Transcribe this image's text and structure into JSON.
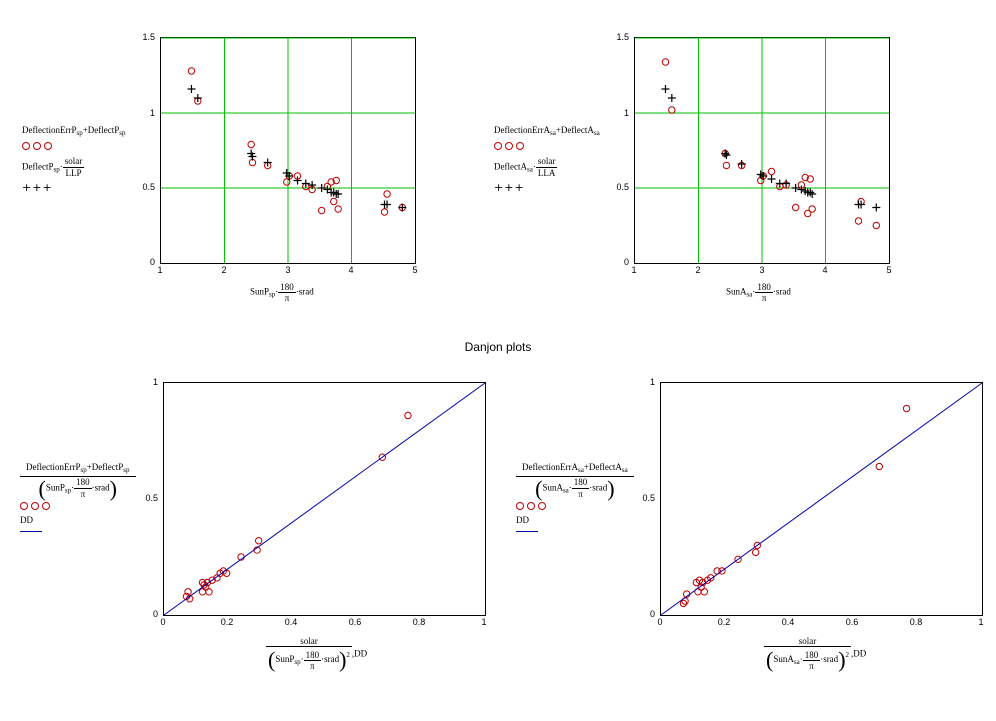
{
  "page_title": "Danjon plots",
  "chart_data": [
    {
      "id": "p1",
      "type": "scatter",
      "xlim": [
        1,
        5
      ],
      "ylim": [
        0,
        1.5
      ],
      "x_ticks": [
        "1",
        "2",
        "3",
        "4",
        "5"
      ],
      "y_ticks": [
        "0",
        "0.5",
        "1",
        "1.5"
      ],
      "grid": true,
      "grid_color": "#00c000",
      "legend_lines": [
        "DeflectionErrP",
        "sp",
        "+DeflectP",
        "sp",
        "DeflectP",
        "sp",
        "solar",
        "LLP"
      ],
      "xlabel": [
        "SunP",
        "sp",
        "180",
        "π",
        "srad"
      ],
      "series": [
        {
          "marker": "circle",
          "color": "#c00000",
          "points": [
            [
              1.48,
              1.28
            ],
            [
              1.58,
              1.08
            ],
            [
              2.42,
              0.79
            ],
            [
              2.44,
              0.67
            ],
            [
              2.68,
              0.65
            ],
            [
              2.98,
              0.54
            ],
            [
              3.02,
              0.58
            ],
            [
              3.15,
              0.58
            ],
            [
              3.28,
              0.51
            ],
            [
              3.38,
              0.49
            ],
            [
              3.53,
              0.35
            ],
            [
              3.62,
              0.51
            ],
            [
              3.68,
              0.54
            ],
            [
              3.72,
              0.41
            ],
            [
              3.76,
              0.55
            ],
            [
              3.79,
              0.36
            ],
            [
              4.52,
              0.34
            ],
            [
              4.56,
              0.46
            ],
            [
              4.8,
              0.37
            ]
          ]
        },
        {
          "marker": "plus",
          "color": "#000000",
          "points": [
            [
              1.48,
              1.16
            ],
            [
              1.58,
              1.1
            ],
            [
              2.42,
              0.73
            ],
            [
              2.44,
              0.71
            ],
            [
              2.68,
              0.67
            ],
            [
              2.98,
              0.6
            ],
            [
              3.02,
              0.58
            ],
            [
              3.15,
              0.55
            ],
            [
              3.28,
              0.53
            ],
            [
              3.38,
              0.52
            ],
            [
              3.53,
              0.5
            ],
            [
              3.62,
              0.49
            ],
            [
              3.68,
              0.47
            ],
            [
              3.72,
              0.47
            ],
            [
              3.76,
              0.46
            ],
            [
              3.79,
              0.46
            ],
            [
              4.52,
              0.39
            ],
            [
              4.56,
              0.39
            ],
            [
              4.8,
              0.37
            ]
          ]
        }
      ]
    },
    {
      "id": "p2",
      "type": "scatter",
      "xlim": [
        1,
        5
      ],
      "ylim": [
        0,
        1.5
      ],
      "x_ticks": [
        "1",
        "2",
        "3",
        "4",
        "5"
      ],
      "y_ticks": [
        "0",
        "0.5",
        "1",
        "1.5"
      ],
      "grid": true,
      "grid_color": "#00c000",
      "legend_lines": [
        "DeflectionErrA",
        "sa",
        "+DeflectA",
        "sa",
        "DeflectA",
        "sa",
        "solar",
        "LLA"
      ],
      "xlabel": [
        "SunA",
        "sa",
        "180",
        "π",
        "srad"
      ],
      "series": [
        {
          "marker": "circle",
          "color": "#c00000",
          "points": [
            [
              1.48,
              1.34
            ],
            [
              1.58,
              1.02
            ],
            [
              2.42,
              0.73
            ],
            [
              2.44,
              0.65
            ],
            [
              2.68,
              0.65
            ],
            [
              2.98,
              0.55
            ],
            [
              3.02,
              0.58
            ],
            [
              3.15,
              0.61
            ],
            [
              3.28,
              0.51
            ],
            [
              3.38,
              0.52
            ],
            [
              3.53,
              0.37
            ],
            [
              3.62,
              0.52
            ],
            [
              3.68,
              0.57
            ],
            [
              3.72,
              0.33
            ],
            [
              3.76,
              0.56
            ],
            [
              3.79,
              0.36
            ],
            [
              4.52,
              0.28
            ],
            [
              4.56,
              0.41
            ],
            [
              4.8,
              0.25
            ]
          ]
        },
        {
          "marker": "plus",
          "color": "#000000",
          "points": [
            [
              1.48,
              1.16
            ],
            [
              1.58,
              1.1
            ],
            [
              2.42,
              0.73
            ],
            [
              2.44,
              0.72
            ],
            [
              2.68,
              0.66
            ],
            [
              2.98,
              0.59
            ],
            [
              3.02,
              0.58
            ],
            [
              3.15,
              0.56
            ],
            [
              3.28,
              0.53
            ],
            [
              3.38,
              0.53
            ],
            [
              3.53,
              0.5
            ],
            [
              3.62,
              0.49
            ],
            [
              3.68,
              0.48
            ],
            [
              3.72,
              0.47
            ],
            [
              3.76,
              0.47
            ],
            [
              3.79,
              0.46
            ],
            [
              4.52,
              0.39
            ],
            [
              4.56,
              0.39
            ],
            [
              4.8,
              0.37
            ]
          ]
        }
      ]
    },
    {
      "id": "p3",
      "type": "scatter",
      "xlim": [
        0,
        1
      ],
      "ylim": [
        0,
        1
      ],
      "x_ticks": [
        "0",
        "0.2",
        "0.4",
        "0.6",
        "0.8",
        "1"
      ],
      "y_ticks": [
        "0",
        "0.5",
        "1"
      ],
      "grid": false,
      "legend_lines": [
        "DeflectionErrP",
        "sp",
        "+DeflectP",
        "sp",
        "SunP",
        "sp",
        "180",
        "π",
        "srad",
        "DD"
      ],
      "xlabel": [
        "solar",
        "SunP",
        "sp",
        "180",
        "π",
        "srad",
        "2",
        ",DD"
      ],
      "series": [
        {
          "marker": "circle",
          "color": "#c00000",
          "points": [
            [
              0.07,
              0.08
            ],
            [
              0.075,
              0.1
            ],
            [
              0.08,
              0.07
            ],
            [
              0.12,
              0.1
            ],
            [
              0.12,
              0.14
            ],
            [
              0.125,
              0.13
            ],
            [
              0.13,
              0.12
            ],
            [
              0.135,
              0.14
            ],
            [
              0.14,
              0.1
            ],
            [
              0.15,
              0.15
            ],
            [
              0.165,
              0.16
            ],
            [
              0.175,
              0.18
            ],
            [
              0.185,
              0.19
            ],
            [
              0.195,
              0.18
            ],
            [
              0.24,
              0.25
            ],
            [
              0.29,
              0.28
            ],
            [
              0.295,
              0.32
            ],
            [
              0.68,
              0.68
            ],
            [
              0.76,
              0.86
            ]
          ]
        },
        {
          "marker": "line",
          "color": "#0000aa",
          "points": [
            [
              0,
              0
            ],
            [
              1,
              1
            ]
          ]
        }
      ]
    },
    {
      "id": "p4",
      "type": "scatter",
      "xlim": [
        0,
        1
      ],
      "ylim": [
        0,
        1
      ],
      "x_ticks": [
        "0",
        "0.2",
        "0.4",
        "0.6",
        "0.8",
        "1"
      ],
      "y_ticks": [
        "0",
        "0.5",
        "1"
      ],
      "grid": false,
      "legend_lines": [
        "DeflectionErrA",
        "sa",
        "+DeflectA",
        "sa",
        "SunA",
        "sa",
        "180",
        "π",
        "srad",
        "DD"
      ],
      "xlabel": [
        "solar",
        "SunA",
        "sa",
        "180",
        "π",
        "srad",
        "2",
        ",DD"
      ],
      "series": [
        {
          "marker": "circle",
          "color": "#c00000",
          "points": [
            [
              0.07,
              0.05
            ],
            [
              0.075,
              0.06
            ],
            [
              0.08,
              0.09
            ],
            [
              0.11,
              0.14
            ],
            [
              0.115,
              0.1
            ],
            [
              0.12,
              0.15
            ],
            [
              0.125,
              0.12
            ],
            [
              0.13,
              0.14
            ],
            [
              0.135,
              0.1
            ],
            [
              0.145,
              0.15
            ],
            [
              0.155,
              0.16
            ],
            [
              0.175,
              0.19
            ],
            [
              0.19,
              0.19
            ],
            [
              0.24,
              0.24
            ],
            [
              0.295,
              0.27
            ],
            [
              0.3,
              0.3
            ],
            [
              0.68,
              0.64
            ],
            [
              0.765,
              0.89
            ]
          ]
        },
        {
          "marker": "line",
          "color": "#0000aa",
          "points": [
            [
              0,
              0
            ],
            [
              1,
              1
            ]
          ]
        }
      ]
    }
  ]
}
